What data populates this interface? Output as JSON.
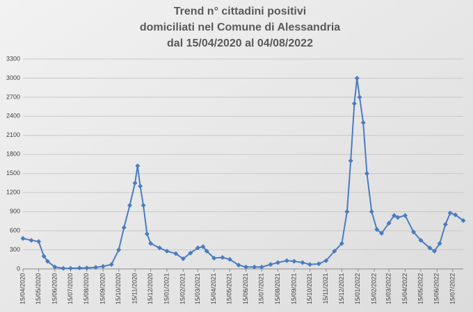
{
  "chart_data": {
    "type": "line",
    "title": [
      "Trend n° cittadini positivi",
      "domiciliati nel Comune di Alessandria",
      "dal 15/04/2020 al 04/08/2022"
    ],
    "x": [
      "15/04/2020",
      "01/05/2020",
      "15/05/2020",
      "25/05/2020",
      "01/06/2020",
      "15/06/2020",
      "01/07/2020",
      "15/07/2020",
      "01/08/2020",
      "15/08/2020",
      "01/09/2020",
      "15/09/2020",
      "01/10/2020",
      "15/10/2020",
      "25/10/2020",
      "05/11/2020",
      "15/11/2020",
      "20/11/2020",
      "25/11/2020",
      "01/12/2020",
      "08/12/2020",
      "15/12/2020",
      "01/01/2021",
      "15/01/2021",
      "01/02/2021",
      "15/02/2021",
      "01/03/2021",
      "15/03/2021",
      "25/03/2021",
      "01/04/2021",
      "15/04/2021",
      "01/05/2021",
      "15/05/2021",
      "01/06/2021",
      "15/06/2021",
      "01/07/2021",
      "15/07/2021",
      "01/08/2021",
      "15/08/2021",
      "01/09/2021",
      "15/09/2021",
      "01/10/2021",
      "15/10/2021",
      "01/11/2021",
      "15/11/2021",
      "01/12/2021",
      "15/12/2021",
      "25/12/2021",
      "01/01/2022",
      "08/01/2022",
      "13/01/2022",
      "18/01/2022",
      "25/01/2022",
      "01/02/2022",
      "10/02/2022",
      "20/02/2022",
      "01/03/2022",
      "15/03/2022",
      "25/03/2022",
      "01/04/2022",
      "15/04/2022",
      "01/05/2022",
      "15/05/2022",
      "01/06/2022",
      "10/06/2022",
      "20/06/2022",
      "01/07/2022",
      "10/07/2022",
      "20/07/2022",
      "04/08/2022"
    ],
    "series": [
      {
        "color": "#4a7cc0",
        "values": [
          480,
          450,
          430,
          200,
          120,
          30,
          10,
          10,
          15,
          15,
          25,
          40,
          70,
          300,
          650,
          1000,
          1350,
          1620,
          1300,
          1000,
          550,
          400,
          330,
          280,
          240,
          160,
          250,
          330,
          350,
          280,
          170,
          180,
          150,
          60,
          30,
          30,
          30,
          70,
          100,
          130,
          120,
          100,
          70,
          80,
          130,
          280,
          400,
          900,
          1700,
          2600,
          3000,
          2700,
          2300,
          1500,
          900,
          620,
          560,
          720,
          840,
          810,
          840,
          580,
          450,
          330,
          280,
          400,
          700,
          880,
          850,
          760
        ]
      }
    ],
    "xlim": [
      "15/04/2020",
      "04/08/2022"
    ],
    "xticks": [
      "15/04/2020",
      "15/05/2020",
      "15/06/2020",
      "15/07/2020",
      "15/08/2020",
      "15/09/2020",
      "15/10/2020",
      "15/11/2020",
      "15/12/2020",
      "15/01/2021",
      "15/02/2021",
      "15/03/2021",
      "15/04/2021",
      "15/05/2021",
      "15/06/2021",
      "15/07/2021",
      "15/08/2021",
      "15/09/2021",
      "15/10/2021",
      "15/11/2021",
      "15/12/2021",
      "15/01/2022",
      "15/02/2022",
      "15/03/2022",
      "15/04/2022",
      "15/05/2022",
      "15/06/2022",
      "15/07/2022"
    ],
    "ylim": [
      0,
      3300
    ],
    "yticks": [
      0,
      300,
      600,
      900,
      1200,
      1500,
      1800,
      2100,
      2400,
      2700,
      3000,
      3300
    ],
    "grid": true
  }
}
